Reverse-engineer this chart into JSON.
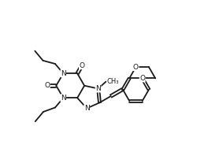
{
  "bg_color": "#ffffff",
  "line_color": "#1a1a1a",
  "line_width": 1.3,
  "font_size": 6.5,
  "figsize": [
    2.83,
    2.12
  ],
  "dpi": 100,
  "xlim": [
    0,
    10
  ],
  "ylim": [
    0,
    7.5
  ]
}
